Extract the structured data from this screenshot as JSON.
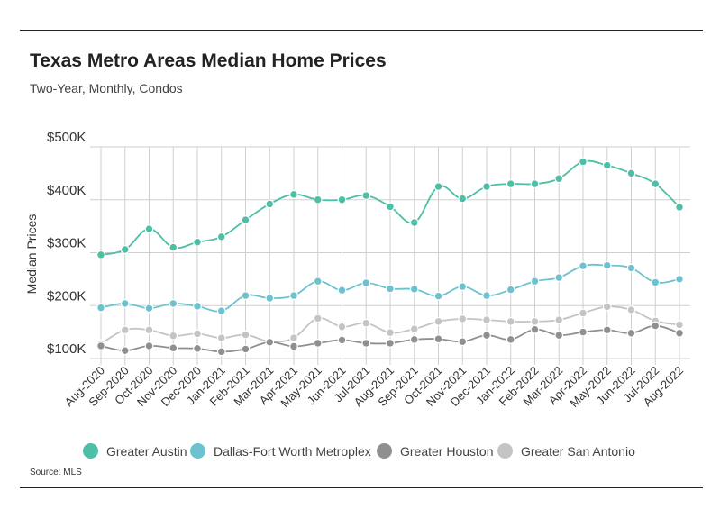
{
  "header": {
    "title": "Texas Metro Areas Median Home Prices",
    "subtitle": "Two-Year, Monthly, Condos"
  },
  "footer": {
    "source": "Source:  MLS"
  },
  "colors": {
    "greater_austin": "#4dbfa6",
    "dallas_fort_worth": "#6cc3cf",
    "greater_houston": "#8f8f8f",
    "greater_san_antonio": "#c4c4c4",
    "grid": "#cfcfcf"
  },
  "chart_data": {
    "type": "line",
    "title": "Texas Metro Areas Median Home Prices",
    "subtitle": "Two-Year, Monthly, Condos",
    "xlabel": "",
    "ylabel": "Median Prices",
    "ylim": [
      100000,
      500000
    ],
    "yticks": [
      100000,
      200000,
      300000,
      400000,
      500000
    ],
    "ytick_labels": [
      "$100K",
      "$200K",
      "$300K",
      "$400K",
      "$500K"
    ],
    "grid": true,
    "legend_position": "bottom",
    "categories": [
      "Aug-2020",
      "Sep-2020",
      "Oct-2020",
      "Nov-2020",
      "Dec-2020",
      "Jan-2021",
      "Feb-2021",
      "Mar-2021",
      "Apr-2021",
      "May-2021",
      "Jun-2021",
      "Jul-2021",
      "Aug-2021",
      "Sep-2021",
      "Oct-2021",
      "Nov-2021",
      "Dec-2021",
      "Jan-2022",
      "Feb-2022",
      "Mar-2022",
      "Apr-2022",
      "May-2022",
      "Jun-2022",
      "Jul-2022",
      "Aug-2022"
    ],
    "series": [
      {
        "name": "Greater Austin",
        "color": "#4dbfa6",
        "values": [
          296000,
          306000,
          345000,
          310000,
          320000,
          330000,
          362000,
          392000,
          410000,
          400000,
          400000,
          408000,
          387000,
          357000,
          425000,
          402000,
          425000,
          430000,
          430000,
          440000,
          472000,
          465000,
          450000,
          430000,
          386000
        ]
      },
      {
        "name": "Dallas-Fort Worth Metroplex",
        "color": "#6cc3cf",
        "values": [
          196000,
          204000,
          195000,
          204000,
          199000,
          190000,
          219000,
          214000,
          219000,
          246000,
          229000,
          243000,
          232000,
          231000,
          218000,
          236000,
          219000,
          230000,
          246000,
          253000,
          275000,
          276000,
          271000,
          244000,
          250000
        ]
      },
      {
        "name": "Greater Houston",
        "color": "#8f8f8f",
        "values": [
          124000,
          115000,
          124000,
          120000,
          119000,
          113000,
          118000,
          131000,
          123000,
          129000,
          135000,
          129000,
          129000,
          136000,
          137000,
          132000,
          144000,
          136000,
          155000,
          144000,
          150000,
          154000,
          148000,
          162000,
          148000
        ]
      },
      {
        "name": "Greater San Antonio",
        "color": "#c4c4c4",
        "values": [
          128000,
          154000,
          154000,
          143000,
          147000,
          139000,
          145000,
          132000,
          139000,
          176000,
          160000,
          167000,
          149000,
          156000,
          170000,
          175000,
          173000,
          170000,
          170000,
          173000,
          186000,
          198000,
          192000,
          171000,
          164000
        ]
      }
    ]
  }
}
